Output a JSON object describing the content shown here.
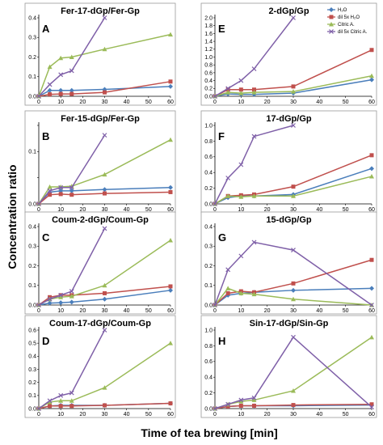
{
  "figure": {
    "xlabel": "Time of tea brewing [min]",
    "ylabel": "Concentration ratio"
  },
  "legend": [
    "H₂O",
    "dil 5x H₂O",
    "Citric A.",
    "dil 5x Citric A."
  ],
  "colors": {
    "H2O": "#4a7ebb",
    "dil5xH2O": "#c0504d",
    "CitricA": "#9bbb59",
    "dil5xCitricA": "#7f60a8"
  },
  "chart_data": [
    {
      "type": "line",
      "letter": "A",
      "title": "Fer-17-dGp/Fer-Gp",
      "x": [
        0,
        5,
        10,
        15,
        30,
        60
      ],
      "xlim": [
        0,
        60
      ],
      "xticks": [
        0,
        10,
        20,
        30,
        40,
        50,
        60
      ],
      "ylim": [
        0,
        0.4
      ],
      "yticks": [
        "0.0",
        "0.1",
        "0.2",
        "0.3",
        "0.4"
      ],
      "series": [
        {
          "name": "H₂O",
          "values": [
            0,
            0.03,
            0.03,
            0.03,
            0.035,
            0.05
          ]
        },
        {
          "name": "dil 5x H₂O",
          "values": [
            0,
            0.01,
            0.012,
            0.012,
            0.02,
            0.075
          ]
        },
        {
          "name": "Citric A.",
          "values": [
            0,
            0.15,
            0.195,
            0.2,
            0.24,
            0.315
          ]
        },
        {
          "name": "dil 5x Citric A.",
          "values": [
            0,
            0.06,
            0.11,
            0.13,
            0.4,
            null
          ]
        }
      ]
    },
    {
      "type": "line",
      "letter": "E",
      "title": "2-dGp/Gp",
      "x": [
        0,
        5,
        10,
        15,
        30,
        60
      ],
      "xlim": [
        0,
        60
      ],
      "xticks": [
        0,
        10,
        20,
        30,
        40,
        50,
        60
      ],
      "ylim": [
        0,
        2.0
      ],
      "yticks": [
        "0.0",
        "0.2",
        "0.4",
        "0.6",
        "0.8",
        "1.0",
        "1.2",
        "1.4",
        "1.6",
        "1.8",
        "2.0"
      ],
      "series": [
        {
          "name": "H₂O",
          "values": [
            0,
            0.06,
            0.05,
            0.05,
            0.08,
            0.42
          ]
        },
        {
          "name": "dil 5x H₂O",
          "values": [
            0,
            0.17,
            0.17,
            0.17,
            0.25,
            1.18
          ]
        },
        {
          "name": "Citric A.",
          "values": [
            0,
            0.1,
            0.08,
            0.1,
            0.12,
            0.52
          ]
        },
        {
          "name": "dil 5x Citric A.",
          "values": [
            0,
            0.2,
            0.4,
            0.7,
            2.0,
            null
          ]
        }
      ]
    },
    {
      "type": "line",
      "letter": "B",
      "title": "Fer-15-dGp/Fer-Gp",
      "x": [
        0,
        5,
        10,
        15,
        30,
        60
      ],
      "xlim": [
        0,
        60
      ],
      "xticks": [
        0,
        10,
        20,
        30,
        40,
        50,
        60
      ],
      "ylim": [
        0,
        0.12
      ],
      "yticks": [
        "0.0",
        "",
        "0.1",
        ""
      ],
      "series": [
        {
          "name": "H₂O",
          "values": [
            0,
            0.018,
            0.02,
            0.02,
            0.022,
            0.025
          ]
        },
        {
          "name": "dil 5x H₂O",
          "values": [
            0,
            0.014,
            0.015,
            0.014,
            0.016,
            0.018
          ]
        },
        {
          "name": "Citric A.",
          "values": [
            0,
            0.026,
            0.026,
            0.027,
            0.045,
            0.098
          ]
        },
        {
          "name": "dil 5x Citric A.",
          "values": [
            0,
            0.02,
            0.025,
            0.025,
            0.105,
            null
          ]
        }
      ]
    },
    {
      "type": "line",
      "letter": "F",
      "title": "17-dGp/Gp",
      "x": [
        0,
        5,
        10,
        15,
        30,
        60
      ],
      "xlim": [
        0,
        60
      ],
      "xticks": [
        0,
        10,
        20,
        30,
        40,
        50,
        60
      ],
      "ylim": [
        0,
        1.0
      ],
      "yticks": [
        "0.0",
        "0.2",
        "0.4",
        "0.6",
        "0.8",
        "1.0"
      ],
      "series": [
        {
          "name": "H₂O",
          "values": [
            0,
            0.08,
            0.1,
            0.1,
            0.12,
            0.45
          ]
        },
        {
          "name": "dil 5x H₂O",
          "values": [
            0,
            0.1,
            0.11,
            0.12,
            0.22,
            0.62
          ]
        },
        {
          "name": "Citric A.",
          "values": [
            0,
            0.1,
            0.09,
            0.1,
            0.1,
            0.35
          ]
        },
        {
          "name": "dil 5x Citric A.",
          "values": [
            0,
            0.33,
            0.5,
            0.86,
            1.0,
            null
          ]
        }
      ]
    },
    {
      "type": "line",
      "letter": "C",
      "title": "Coum-2-dGp/Coum-Gp",
      "x": [
        0,
        5,
        10,
        15,
        30,
        60
      ],
      "xlim": [
        0,
        60
      ],
      "xticks": [
        0,
        10,
        20,
        30,
        40,
        50,
        60
      ],
      "ylim": [
        0,
        0.4
      ],
      "yticks": [
        "0.0",
        "0.1",
        "0.2",
        "0.3",
        "0.4"
      ],
      "series": [
        {
          "name": "H₂O",
          "values": [
            0,
            0.01,
            0.012,
            0.015,
            0.03,
            0.075
          ]
        },
        {
          "name": "dil 5x H₂O",
          "values": [
            0,
            0.04,
            0.05,
            0.05,
            0.06,
            0.095
          ]
        },
        {
          "name": "Citric A.",
          "values": [
            0,
            0.03,
            0.04,
            0.045,
            0.1,
            0.33
          ]
        },
        {
          "name": "dil 5x Citric A.",
          "values": [
            0,
            0.03,
            0.05,
            0.07,
            0.39,
            null
          ]
        }
      ]
    },
    {
      "type": "line",
      "letter": "G",
      "title": "15-dGp/Gp",
      "x": [
        0,
        5,
        10,
        15,
        30,
        60
      ],
      "xlim": [
        0,
        60
      ],
      "xticks": [
        0,
        10,
        20,
        30,
        40,
        50,
        60
      ],
      "ylim": [
        0,
        0.4
      ],
      "yticks": [
        "0.0",
        "0.1",
        "0.2",
        "0.3",
        "0.4"
      ],
      "series": [
        {
          "name": "H₂O",
          "values": [
            0,
            0.05,
            0.06,
            0.065,
            0.075,
            0.085
          ]
        },
        {
          "name": "dil 5x H₂O",
          "values": [
            0,
            0.06,
            0.07,
            0.065,
            0.11,
            0.23
          ]
        },
        {
          "name": "Citric A.",
          "values": [
            0,
            0.085,
            0.06,
            0.055,
            0.03,
            0.0
          ]
        },
        {
          "name": "dil 5x Citric A.",
          "values": [
            0,
            0.18,
            0.25,
            0.32,
            0.28,
            0.0
          ]
        }
      ]
    },
    {
      "type": "line",
      "letter": "D",
      "title": "Coum-17-dGp/Coum-Gp",
      "x": [
        0,
        5,
        10,
        15,
        30,
        60
      ],
      "xlim": [
        0,
        60
      ],
      "xticks": [
        0,
        10,
        20,
        30,
        40,
        50,
        60
      ],
      "ylim": [
        0,
        0.6
      ],
      "yticks": [
        "0.0",
        "0.1",
        "0.2",
        "0.3",
        "0.4",
        "0.5",
        "0.6"
      ],
      "series": [
        {
          "name": "H₂O",
          "values": [
            0,
            0.02,
            0.025,
            0.025,
            0.025,
            0.04
          ]
        },
        {
          "name": "dil 5x H₂O",
          "values": [
            0,
            0.02,
            0.02,
            0.02,
            0.025,
            0.04
          ]
        },
        {
          "name": "Citric A.",
          "values": [
            0,
            0.05,
            0.06,
            0.06,
            0.16,
            0.5
          ]
        },
        {
          "name": "dil 5x Citric A.",
          "values": [
            0,
            0.06,
            0.1,
            0.12,
            0.6,
            null
          ]
        }
      ]
    },
    {
      "type": "line",
      "letter": "H",
      "title": "Sin-17-dGp/Sin-Gp",
      "x": [
        0,
        5,
        10,
        15,
        30,
        60
      ],
      "xlim": [
        0,
        60
      ],
      "xticks": [
        0,
        10,
        20,
        30,
        40,
        50,
        60
      ],
      "ylim": [
        0,
        1.1
      ],
      "yticks": [
        "0.0",
        "0.2",
        "0.4",
        "0.6",
        "0.8",
        "1.0"
      ],
      "series": [
        {
          "name": "H₂O",
          "values": [
            0,
            0.03,
            0.04,
            0.04,
            0.04,
            0.05
          ]
        },
        {
          "name": "dil 5x H₂O",
          "values": [
            0,
            0.03,
            0.04,
            0.04,
            0.05,
            0.06
          ]
        },
        {
          "name": "Citric A.",
          "values": [
            0,
            0.06,
            0.1,
            0.12,
            0.25,
            1.0
          ]
        },
        {
          "name": "dil 5x Citric A.",
          "values": [
            0,
            0.06,
            0.12,
            0.15,
            1.0,
            0.02
          ]
        }
      ]
    }
  ]
}
